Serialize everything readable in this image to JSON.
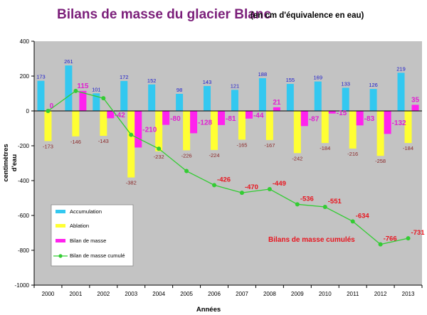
{
  "chart_data": {
    "type": "bar",
    "title": "Bilans de masse du glacier Blanc",
    "subtitle": "(en cm d'équivalence en eau)",
    "xlabel": "Années",
    "ylabel_line1": "centimètres",
    "ylabel_line2": "d'eau",
    "ylim": [
      -1000,
      400
    ],
    "yticks": [
      "400",
      "200",
      "0",
      "-200",
      "-400",
      "-600",
      "-800",
      "-1000"
    ],
    "categories": [
      "2000",
      "2001",
      "2002",
      "2003",
      "2004",
      "2005",
      "2006",
      "2007",
      "2008",
      "2009",
      "2010",
      "2011",
      "2012",
      "2013"
    ],
    "series": [
      {
        "name": "Accumulation",
        "type": "bar",
        "color": "#33c8f0",
        "values": [
          173,
          261,
          101,
          172,
          152,
          98,
          143,
          121,
          188,
          155,
          169,
          133,
          126,
          219
        ],
        "labels": [
          "173",
          "261",
          "101",
          "172",
          "152",
          "98",
          "143",
          "121",
          "188",
          "155",
          "169",
          "133",
          "126",
          "219"
        ]
      },
      {
        "name": "Ablation",
        "type": "bar",
        "color": "#ffff33",
        "values": [
          -173,
          -146,
          -143,
          -382,
          -232,
          -226,
          -224,
          -165,
          -167,
          -242,
          -184,
          -216,
          -258,
          -184
        ],
        "labels": [
          "-173",
          "-146",
          "-143",
          "-382",
          "-232",
          "-226",
          "-224",
          "-165",
          "-167",
          "-242",
          "-184",
          "-216",
          "-258",
          "-184"
        ]
      },
      {
        "name": "Bilan de masse",
        "type": "bar",
        "color": "#ff22ee",
        "values": [
          0,
          115,
          -42,
          -210,
          -80,
          -128,
          -81,
          -44,
          21,
          -87,
          -15,
          -83,
          -132,
          35
        ],
        "labels": [
          "0",
          "115",
          "-42",
          "-210",
          "-80",
          "-128",
          "-81",
          "-44",
          "21",
          "-87",
          "-15",
          "-83",
          "-132",
          "35"
        ]
      },
      {
        "name": "Bilan de masse cumulé",
        "type": "line",
        "color": "#33cc33",
        "values": [
          0,
          115,
          73,
          -137,
          -217,
          -345,
          -426,
          -470,
          -449,
          -536,
          -551,
          -634,
          -766,
          -731
        ],
        "labels": [
          "",
          "",
          "",
          "",
          "",
          "",
          "-426",
          "-470",
          "-449",
          "-536",
          "-551",
          "-634",
          "-766",
          "-731"
        ]
      }
    ],
    "annotation": "Bilans de masse cumulés",
    "grid": false,
    "legend_placement": "bottom-left"
  }
}
